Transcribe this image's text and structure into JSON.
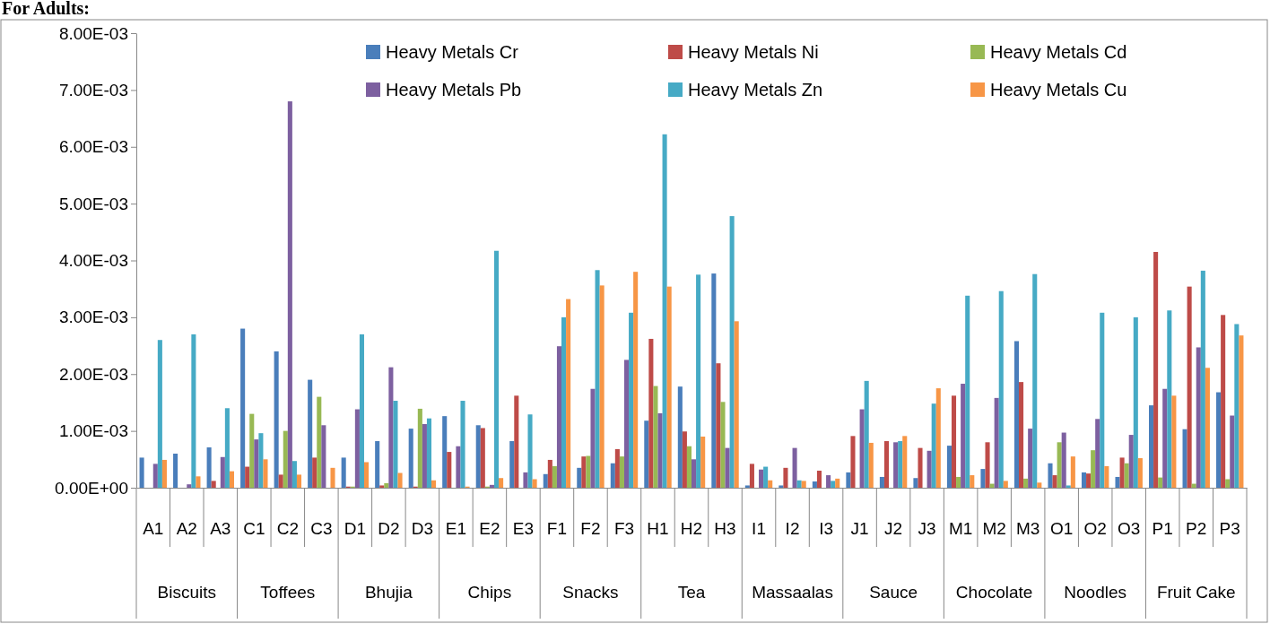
{
  "chart_data": {
    "type": "bar",
    "title": "For Adults:",
    "categories": [
      "A1",
      "A2",
      "A3",
      "C1",
      "C2",
      "C3",
      "D1",
      "D2",
      "D3",
      "E1",
      "E2",
      "E3",
      "F1",
      "F2",
      "F3",
      "H1",
      "H2",
      "H3",
      "I1",
      "I2",
      "I3",
      "J1",
      "J2",
      "J3",
      "M1",
      "M2",
      "M3",
      "O1",
      "O2",
      "O3",
      "P1",
      "P2",
      "P3"
    ],
    "annotations": [
      "Biscuits",
      "Toffees",
      "Bhujia",
      "Chips",
      "Snacks",
      "Tea",
      "Massaalas",
      "Sauce",
      "Chocolate",
      "Noodles",
      "Fruit Cake"
    ],
    "series": [
      {
        "name": "Heavy Metals Cr",
        "color": "#4a7ebb",
        "values": [
          0.00053,
          0.0006,
          0.00071,
          0.0028,
          0.0024,
          0.0019,
          0.00053,
          0.00082,
          0.00104,
          0.00126,
          0.0011,
          0.00082,
          0.00024,
          0.00035,
          0.00043,
          0.00118,
          0.00178,
          0.00377,
          4e-05,
          4e-05,
          0.00011,
          0.00027,
          0.00019,
          0.00017,
          0.00074,
          0.00033,
          0.00258,
          0.00043,
          0.00027,
          0.00019,
          0.00145,
          0.00103,
          0.00168
        ]
      },
      {
        "name": "Heavy Metals Ni",
        "color": "#be4b48",
        "values": [
          0,
          0,
          0.00012,
          0.00037,
          0.00023,
          0.00053,
          2e-05,
          4e-05,
          2e-05,
          0.00063,
          0.00105,
          0.00162,
          0.00049,
          0.00055,
          0.00068,
          0.00262,
          0.00099,
          0.00219,
          0.00042,
          0.00035,
          0.0003,
          0.00091,
          0.00082,
          0.0007,
          0.00162,
          0.0008,
          0.00186,
          0.00022,
          0.00025,
          0.00053,
          0.00415,
          0.00354,
          0.00304
        ]
      },
      {
        "name": "Heavy Metals Cd",
        "color": "#98b954",
        "values": [
          0,
          0,
          0,
          0.0013,
          0.001,
          0.0016,
          2e-05,
          8e-05,
          0.00139,
          null,
          2e-05,
          0,
          0.00038,
          0.00056,
          0.00055,
          0.00179,
          0.00073,
          0.00151,
          null,
          0,
          0,
          0,
          0,
          0,
          0.00019,
          7e-05,
          0.00016,
          0.0008,
          0.00066,
          0.00043,
          0.00018,
          7e-05,
          0.00015
        ]
      },
      {
        "name": "Heavy Metals Pb",
        "color": "#7d60a0",
        "values": [
          0.00042,
          6e-05,
          0.00054,
          0.00085,
          0.0068,
          0.0011,
          0.00138,
          0.00212,
          0.00112,
          0.00073,
          5e-05,
          0.00027,
          0.00249,
          0.00174,
          0.00225,
          0.00131,
          0.0005,
          0.0007,
          0.00032,
          0.0007,
          0.00022,
          0.00138,
          0.0008,
          0.00065,
          0.00183,
          0.00158,
          0.00104,
          0.00097,
          0.00121,
          0.00093,
          0.00174,
          0.00247,
          0.00127
        ]
      },
      {
        "name": "Heavy Metals Zn",
        "color": "#46aac5",
        "values": [
          0.0026,
          0.0027,
          0.0014,
          0.00096,
          0.00047,
          0,
          0.0027,
          0.00153,
          0.00122,
          0.00153,
          0.00417,
          0.00129,
          0.003,
          0.00383,
          0.00308,
          0.00622,
          0.00375,
          0.00478,
          0.00037,
          0.00013,
          0.00012,
          0.00188,
          0.00082,
          0.00148,
          0.00338,
          0.00346,
          0.00376,
          4e-05,
          0.00308,
          0.003,
          0.00312,
          0.00382,
          0.00288
        ]
      },
      {
        "name": "Heavy Metals Cu",
        "color": "#f79646",
        "values": [
          0.00049,
          0.0002,
          0.00029,
          0.0005,
          0.00023,
          0.00035,
          0.00045,
          0.00026,
          0.00013,
          2e-05,
          0.00017,
          0.00015,
          0.00332,
          0.00356,
          0.0038,
          0.00354,
          0.0009,
          0.00293,
          0.00013,
          0.00012,
          0.00016,
          0.00079,
          0.00091,
          0.00175,
          0.00022,
          0.00012,
          9e-05,
          0.00055,
          0.00038,
          0.00052,
          0.00162,
          0.00211,
          0.00268
        ]
      }
    ],
    "ylim": [
      0,
      0.008
    ],
    "yticks": [
      {
        "value": 0,
        "label": "0.00E+00"
      },
      {
        "value": 0.001,
        "label": "1.00E-03"
      },
      {
        "value": 0.002,
        "label": "2.00E-03"
      },
      {
        "value": 0.003,
        "label": "3.00E-03"
      },
      {
        "value": 0.004,
        "label": "4.00E-03"
      },
      {
        "value": 0.005,
        "label": "5.00E-03"
      },
      {
        "value": 0.006,
        "label": "6.00E-03"
      },
      {
        "value": 0.007,
        "label": "7.00E-03"
      },
      {
        "value": 0.008,
        "label": "8.00E-03"
      }
    ],
    "legend": "top"
  }
}
